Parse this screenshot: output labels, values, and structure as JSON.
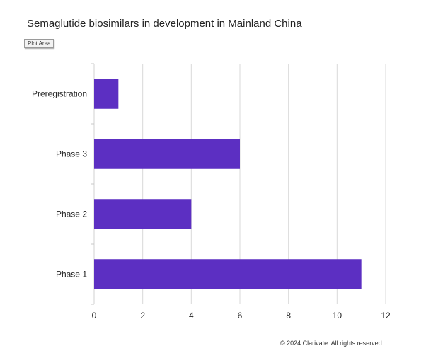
{
  "chart_data": {
    "type": "bar",
    "orientation": "horizontal",
    "title": "Semaglutide biosimilars in development in Mainland China",
    "categories": [
      "Preregistration",
      "Phase 3",
      "Phase 2",
      "Phase 1"
    ],
    "values": [
      1,
      6,
      4,
      11
    ],
    "xlim": [
      0,
      12
    ],
    "xticks": [
      0,
      2,
      4,
      6,
      8,
      10,
      12
    ],
    "bar_color": "#5c2fc2",
    "grid": true
  },
  "tooltip": {
    "label": "Plot Area"
  },
  "footer": {
    "copyright": "© 2024 Clarivate. All rights reserved."
  }
}
